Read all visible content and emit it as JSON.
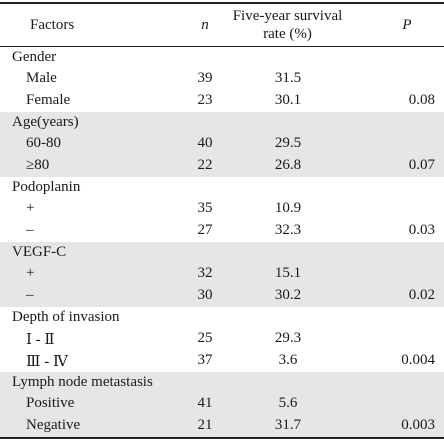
{
  "header": {
    "factors": "Factors",
    "n": "n",
    "survival": "Five-year survival rate (%)",
    "p": "P"
  },
  "groups": [
    {
      "title": "Gender",
      "rows": [
        {
          "label": "Male",
          "n": "39",
          "rate": "31.5",
          "p": ""
        },
        {
          "label": "Female",
          "n": "23",
          "rate": "30.1",
          "p": "0.08"
        }
      ]
    },
    {
      "title": "Age(years)",
      "rows": [
        {
          "label": "60-80",
          "n": "40",
          "rate": "29.5",
          "p": ""
        },
        {
          "label": "≥80",
          "n": "22",
          "rate": "26.8",
          "p": "0.07"
        }
      ]
    },
    {
      "title": "Podoplanin",
      "rows": [
        {
          "label": "+",
          "n": "35",
          "rate": "10.9",
          "p": ""
        },
        {
          "label": "–",
          "n": "27",
          "rate": "32.3",
          "p": "0.03"
        }
      ]
    },
    {
      "title": "VEGF-C",
      "rows": [
        {
          "label": "+",
          "n": "32",
          "rate": "15.1",
          "p": ""
        },
        {
          "label": "–",
          "n": "30",
          "rate": "30.2",
          "p": "0.02"
        }
      ]
    },
    {
      "title": "Depth of invasion",
      "rows": [
        {
          "label": "Ⅰ - Ⅱ",
          "n": "25",
          "rate": "29.3",
          "p": ""
        },
        {
          "label": "Ⅲ - Ⅳ",
          "n": "37",
          "rate": "3.6",
          "p": "0.004"
        }
      ]
    },
    {
      "title": "Lymph node metastasis",
      "rows": [
        {
          "label": "Positive",
          "n": "41",
          "rate": "5.6",
          "p": ""
        },
        {
          "label": "Negative",
          "n": "21",
          "rate": "31.7",
          "p": "0.003"
        }
      ]
    }
  ]
}
